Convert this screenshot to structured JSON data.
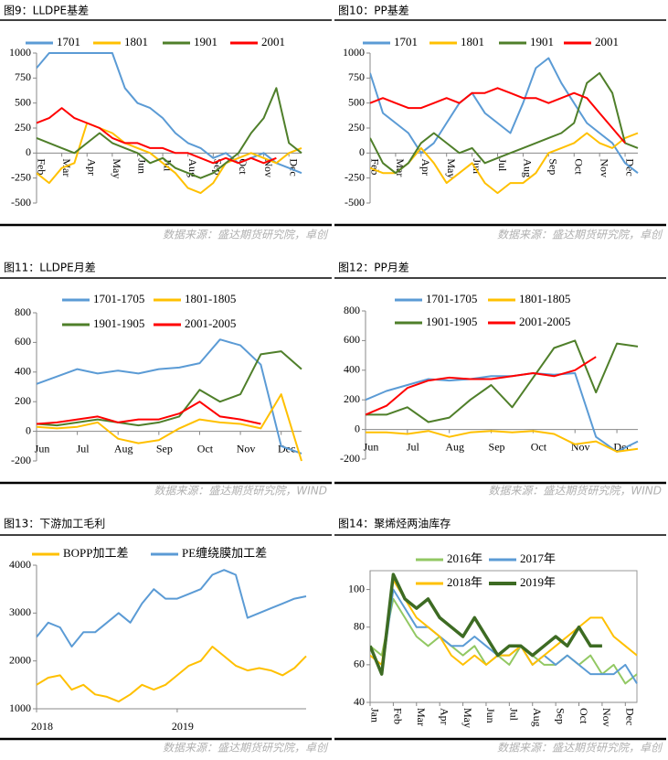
{
  "chart_data": [
    {
      "type": "line",
      "title": "图9：LLDPE基差",
      "source": "数据来源：盛达期货研究院，卓创",
      "categories": [
        "Feb",
        null,
        "Mar",
        null,
        "Apr",
        null,
        "May",
        null,
        "Jun",
        null,
        "Jul",
        null,
        "Aug",
        null,
        "Sep",
        null,
        "Oct",
        null,
        "Nov",
        null,
        "Dec",
        null
      ],
      "ylim": [
        -500,
        1000
      ],
      "yticks": [
        -500,
        -250,
        0,
        250,
        500,
        750,
        1000
      ],
      "series": [
        {
          "name": "1701",
          "color": "#5b9bd5",
          "values": [
            850,
            1000,
            1000,
            1000,
            1000,
            1000,
            1000,
            650,
            500,
            450,
            350,
            200,
            100,
            50,
            -50,
            0,
            -100,
            -50,
            0,
            -100,
            -150,
            -200
          ]
        },
        {
          "name": "1801",
          "color": "#ffc000",
          "values": [
            -200,
            -300,
            -150,
            -100,
            300,
            250,
            200,
            100,
            50,
            0,
            -100,
            -200,
            -350,
            -400,
            -300,
            -100,
            -50,
            0,
            -50,
            -100,
            0,
            50
          ]
        },
        {
          "name": "1901",
          "color": "#4f7f2a",
          "values": [
            150,
            100,
            50,
            0,
            100,
            200,
            100,
            50,
            0,
            -100,
            -50,
            -150,
            -200,
            -250,
            -200,
            -100,
            0,
            200,
            350,
            650,
            100,
            0
          ]
        },
        {
          "name": "2001",
          "color": "#ff0000",
          "values": [
            300,
            350,
            450,
            350,
            300,
            250,
            150,
            100,
            100,
            50,
            50,
            0,
            0,
            -50,
            -100,
            -50,
            -100,
            -50,
            -100,
            -50,
            null,
            null
          ]
        }
      ]
    },
    {
      "type": "line",
      "title": "图10：PP基差",
      "source": "数据来源：盛达期货研究院，卓创",
      "categories": [
        "Feb",
        null,
        "Mar",
        null,
        "Apr",
        null,
        "May",
        null,
        "Jun",
        null,
        "Jul",
        null,
        "Aug",
        null,
        "Sep",
        null,
        "Oct",
        null,
        "Nov",
        null,
        "Dec",
        null
      ],
      "ylim": [
        -500,
        1000
      ],
      "yticks": [
        -500,
        -250,
        0,
        250,
        500,
        750,
        1000
      ],
      "series": [
        {
          "name": "1701",
          "color": "#5b9bd5",
          "values": [
            800,
            400,
            300,
            200,
            0,
            100,
            300,
            500,
            600,
            400,
            300,
            200,
            500,
            850,
            950,
            700,
            500,
            300,
            200,
            100,
            -100,
            -200
          ]
        },
        {
          "name": "1801",
          "color": "#ffc000",
          "values": [
            -150,
            -200,
            -200,
            -100,
            50,
            -100,
            -300,
            -200,
            -100,
            -300,
            -400,
            -300,
            -300,
            -200,
            0,
            50,
            100,
            200,
            100,
            50,
            150,
            200
          ]
        },
        {
          "name": "1901",
          "color": "#4f7f2a",
          "values": [
            150,
            -100,
            -200,
            -100,
            100,
            200,
            100,
            0,
            50,
            -100,
            -50,
            0,
            50,
            100,
            150,
            200,
            300,
            700,
            800,
            600,
            100,
            50
          ]
        },
        {
          "name": "2001",
          "color": "#ff0000",
          "values": [
            500,
            550,
            500,
            450,
            450,
            500,
            550,
            500,
            600,
            600,
            650,
            600,
            550,
            550,
            500,
            550,
            600,
            550,
            400,
            250,
            100,
            null
          ]
        }
      ]
    },
    {
      "type": "line",
      "title": "图11：LLDPE月差",
      "source": "数据来源：盛达期货研究院，WIND",
      "categories": [
        "Jun",
        null,
        "Jul",
        null,
        "Aug",
        null,
        "Sep",
        null,
        "Oct",
        null,
        "Nov",
        null,
        "Dec",
        null
      ],
      "ylim": [
        -200,
        800
      ],
      "yticks": [
        -200,
        0,
        200,
        400,
        600,
        800
      ],
      "series": [
        {
          "name": "1701-1705",
          "color": "#5b9bd5",
          "values": [
            320,
            370,
            420,
            390,
            410,
            390,
            420,
            430,
            460,
            620,
            580,
            450,
            -100,
            -150
          ]
        },
        {
          "name": "1801-1805",
          "color": "#ffc000",
          "values": [
            30,
            20,
            30,
            60,
            -50,
            -80,
            -60,
            20,
            80,
            60,
            50,
            20,
            250,
            -200
          ]
        },
        {
          "name": "1901-1905",
          "color": "#4f7f2a",
          "values": [
            50,
            40,
            60,
            80,
            60,
            40,
            60,
            100,
            280,
            200,
            250,
            520,
            540,
            420
          ]
        },
        {
          "name": "2001-2005",
          "color": "#ff0000",
          "values": [
            50,
            60,
            80,
            100,
            60,
            80,
            80,
            120,
            200,
            100,
            80,
            50,
            null,
            null
          ]
        }
      ]
    },
    {
      "type": "line",
      "title": "图12：PP月差",
      "source": "数据来源：盛达期货研究院，WIND",
      "categories": [
        "Jun",
        null,
        "Jul",
        null,
        "Aug",
        null,
        "Sep",
        null,
        "Oct",
        null,
        "Nov",
        null,
        "Dec",
        null
      ],
      "ylim": [
        -200,
        800
      ],
      "yticks": [
        -200,
        0,
        200,
        400,
        600,
        800
      ],
      "series": [
        {
          "name": "1701-1705",
          "color": "#5b9bd5",
          "values": [
            200,
            260,
            300,
            340,
            330,
            340,
            360,
            360,
            380,
            370,
            380,
            -50,
            -150,
            -80
          ]
        },
        {
          "name": "1801-1805",
          "color": "#ffc000",
          "values": [
            -20,
            -20,
            -30,
            -10,
            -50,
            -20,
            -10,
            -20,
            -10,
            -30,
            -100,
            -80,
            -150,
            -130
          ]
        },
        {
          "name": "1901-1905",
          "color": "#4f7f2a",
          "values": [
            100,
            100,
            150,
            50,
            80,
            200,
            300,
            150,
            350,
            550,
            600,
            250,
            580,
            560
          ]
        },
        {
          "name": "2001-2005",
          "color": "#ff0000",
          "values": [
            100,
            160,
            280,
            330,
            350,
            340,
            340,
            360,
            380,
            360,
            400,
            490,
            null,
            null
          ]
        }
      ]
    },
    {
      "type": "line",
      "title": "图13：下游加工毛利",
      "source": "数据来源：盛达期货研究院，卓创",
      "categories": [
        "2018",
        null,
        null,
        null,
        null,
        null,
        null,
        null,
        null,
        null,
        null,
        null,
        "2019",
        null,
        null,
        null,
        null,
        null,
        null,
        null,
        null,
        null,
        null,
        null
      ],
      "ylim": [
        1000,
        4000
      ],
      "yticks": [
        1000,
        2000,
        3000,
        4000
      ],
      "series": [
        {
          "name": "BOPP加工差",
          "color": "#ffc000",
          "values": [
            1500,
            1650,
            1700,
            1400,
            1500,
            1300,
            1250,
            1150,
            1300,
            1500,
            1400,
            1500,
            1700,
            1900,
            2000,
            2300,
            2100,
            1900,
            1800,
            1850,
            1800,
            1700,
            1850,
            2100
          ]
        },
        {
          "name": "PE缠绕膜加工差",
          "color": "#5b9bd5",
          "values": [
            2500,
            2800,
            2700,
            2300,
            2600,
            2600,
            2800,
            3000,
            2800,
            3200,
            3500,
            3300,
            3300,
            3400,
            3500,
            3800,
            3900,
            3800,
            2900,
            3000,
            3100,
            3200,
            3300,
            3350
          ]
        }
      ]
    },
    {
      "type": "line",
      "title": "图14：聚烯烃两油库存",
      "source": "数据来源：盛达期货研究院，卓创",
      "categories": [
        "Jan",
        null,
        "Feb",
        null,
        "Mar",
        null,
        "Apr",
        null,
        "May",
        null,
        "Jun",
        null,
        "Jul",
        null,
        "Aug",
        null,
        "Sep",
        null,
        "Oct",
        null,
        "Nov",
        null,
        "Dec",
        null
      ],
      "ylim": [
        40,
        110
      ],
      "yticks": [
        40,
        60,
        80,
        100
      ],
      "series": [
        {
          "name": "2016年",
          "color": "#92c863",
          "values": [
            70,
            65,
            95,
            85,
            75,
            70,
            75,
            70,
            65,
            70,
            60,
            65,
            60,
            70,
            65,
            60,
            60,
            65,
            60,
            65,
            55,
            60,
            50,
            55
          ]
        },
        {
          "name": "2017年",
          "color": "#5b9bd5",
          "values": [
            70,
            55,
            100,
            90,
            80,
            80,
            75,
            70,
            70,
            75,
            70,
            65,
            65,
            70,
            60,
            65,
            60,
            65,
            60,
            55,
            55,
            55,
            60,
            50
          ]
        },
        {
          "name": "2018年",
          "color": "#ffc000",
          "values": [
            65,
            60,
            105,
            95,
            85,
            80,
            75,
            65,
            60,
            65,
            60,
            65,
            65,
            70,
            60,
            65,
            70,
            75,
            80,
            85,
            85,
            75,
            70,
            65
          ]
        },
        {
          "name": "2019年",
          "color": "#3d6b23",
          "values": [
            70,
            55,
            108,
            95,
            90,
            95,
            85,
            80,
            75,
            85,
            75,
            65,
            70,
            70,
            65,
            70,
            75,
            70,
            80,
            70,
            70,
            null,
            null,
            null
          ]
        }
      ]
    }
  ]
}
